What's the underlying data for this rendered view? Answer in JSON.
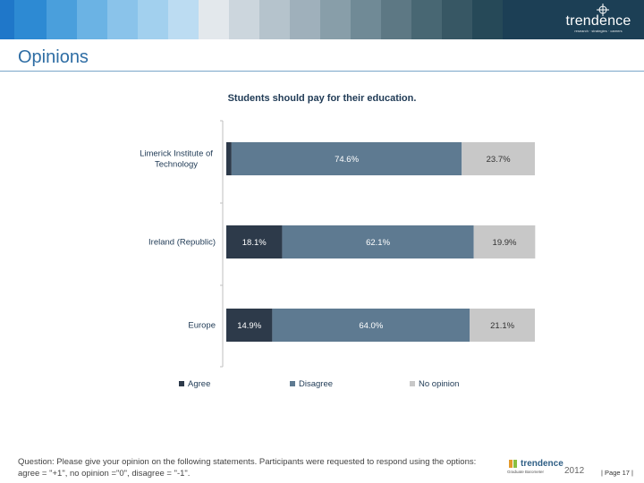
{
  "header": {
    "stripe_colors": [
      "#1f77c9",
      "#2d8ad3",
      "#4a9fdc",
      "#6bb3e4",
      "#8ac3ea",
      "#a2d0ee",
      "#bcdcf2",
      "#e3e8ec",
      "#ccd6dd",
      "#b5c3cc",
      "#9fb0bb",
      "#889ea9",
      "#708a96",
      "#5d7884",
      "#486773",
      "#375764",
      "#264958"
    ],
    "brand_bg": "#1c3f55",
    "brand_name": "trendence",
    "brand_tagline": "research · strategies · careers"
  },
  "page": {
    "title": "Opinions"
  },
  "chart_data": {
    "type": "bar",
    "orientation": "horizontal",
    "stacked": true,
    "title": "Students should pay for their education.",
    "categories": [
      "Limerick Institute of Technology",
      "Ireland (Republic)",
      "Europe"
    ],
    "series": [
      {
        "name": "Agree",
        "values": [
          1.7,
          18.1,
          14.9
        ],
        "labels": [
          "1.7%",
          "18.1%",
          "14.9%"
        ],
        "color": "#2d3a4a",
        "label_color": "#ffffff"
      },
      {
        "name": "Disagree",
        "values": [
          74.6,
          62.1,
          64.0
        ],
        "labels": [
          "74.6%",
          "62.1%",
          "64.0%"
        ],
        "color": "#5e7a91",
        "label_color": "#ffffff"
      },
      {
        "name": "No opinion",
        "values": [
          23.7,
          19.9,
          21.1
        ],
        "labels": [
          "23.7%",
          "19.9%",
          "21.1%"
        ],
        "color": "#c8c8c8",
        "label_color": "#333333"
      }
    ],
    "xlim": [
      0,
      100
    ],
    "legend_position": "bottom"
  },
  "footer": {
    "question": "Question: Please give your opinion on the following statements. Participants were requested to respond using the options: agree = \"+1\", no opinion =\"0\", disagree = \"-1\".",
    "logo_name": "trendence",
    "logo_tagline": "Graduate Barometer",
    "logo_year": "2012",
    "page_number": "| Page 17 |"
  }
}
